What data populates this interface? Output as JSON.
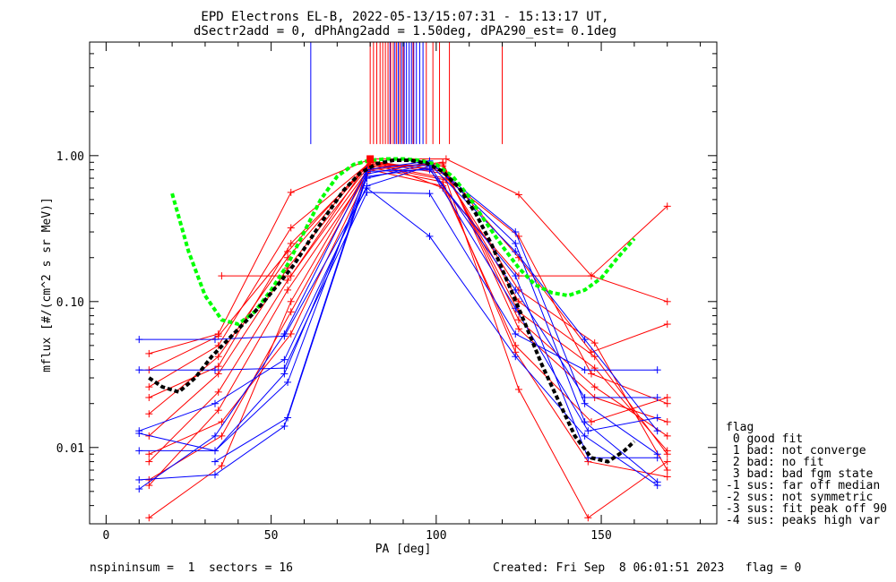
{
  "chart_data": {
    "type": "scatter",
    "title": "EPD Electrons EL-B, 2022-05-13/15:07:31 - 15:13:17 UT,",
    "subtitle": "dSectr2add = 0, dPhAng2add = 1.50deg, dPA290_est=    0.1deg",
    "xlabel": "PA [deg]",
    "ylabel": "mflux [#/(cm^2 s sr MeV)]",
    "xlim": [
      -5,
      185
    ],
    "ylim": [
      0.003,
      6
    ],
    "yscale": "log",
    "x_ticks": [
      "0",
      "50",
      "100",
      "150"
    ],
    "y_ticks": [
      "0.01",
      "0.10",
      "1.00"
    ],
    "legend_position": "right",
    "legend": {
      "title": "flag",
      "entries": [
        " 0 good fit",
        " 1 bad: not converge",
        " 2 bad: no fit",
        " 3 bad: bad fgm state",
        "-1 sus: far off median",
        "-2 sus: not symmetric",
        "-3 sus: fit peak off 90",
        "-4 sus: peaks high var"
      ]
    },
    "vertical_markers": {
      "blue": [
        62,
        86,
        87.5,
        88.5,
        89.5,
        90.3,
        91,
        91.8,
        92.5,
        93.2,
        94,
        95,
        96
      ],
      "red": [
        80,
        81,
        82,
        83,
        83.8,
        84.6,
        85.4,
        86.2,
        87,
        88,
        89,
        90,
        93,
        97,
        99,
        101,
        104,
        120
      ]
    },
    "series": [
      {
        "color": "#ff0000",
        "x": [
          13,
          34,
          55,
          80,
          102,
          125,
          148,
          170
        ],
        "y": [
          0.034,
          0.058,
          0.22,
          0.92,
          0.78,
          0.12,
          0.052,
          0.007
        ]
      },
      {
        "color": "#ff0000",
        "x": [
          13,
          34,
          55,
          80,
          102,
          125,
          148,
          170
        ],
        "y": [
          0.017,
          0.042,
          0.2,
          0.9,
          0.8,
          0.1,
          0.042,
          0.009
        ]
      },
      {
        "color": "#ff0000",
        "x": [
          13,
          34,
          55,
          80,
          102,
          125,
          148,
          170
        ],
        "y": [
          0.012,
          0.032,
          0.17,
          0.87,
          0.85,
          0.085,
          0.035,
          0.0095
        ]
      },
      {
        "color": "#ff0000",
        "x": [
          13,
          34,
          55,
          80,
          102,
          125,
          148,
          170
        ],
        "y": [
          0.008,
          0.024,
          0.14,
          0.84,
          0.88,
          0.075,
          0.026,
          0.012
        ]
      },
      {
        "color": "#ff0000",
        "x": [
          13,
          34,
          55,
          80,
          102,
          125,
          148,
          170
        ],
        "y": [
          0.0055,
          0.018,
          0.12,
          0.8,
          0.9,
          0.065,
          0.022,
          0.015
        ]
      },
      {
        "color": "#ff0000",
        "x": [
          13,
          34,
          56,
          80,
          103,
          125,
          147,
          170
        ],
        "y": [
          0.044,
          0.06,
          0.56,
          0.95,
          0.95,
          0.54,
          0.15,
          0.45
        ]
      },
      {
        "color": "#ff0000",
        "x": [
          13,
          34,
          56,
          80,
          103,
          125,
          147,
          170
        ],
        "y": [
          0.026,
          0.05,
          0.32,
          0.9,
          0.75,
          0.2,
          0.045,
          0.07
        ]
      },
      {
        "color": "#ff0000",
        "x": [
          13,
          34,
          56,
          80,
          103,
          125,
          147,
          170
        ],
        "y": [
          0.022,
          0.036,
          0.25,
          0.88,
          0.7,
          0.28,
          0.032,
          0.02
        ]
      },
      {
        "color": "#ff0000",
        "x": [
          13,
          35,
          56,
          80,
          103,
          125,
          146,
          170
        ],
        "y": [
          0.0033,
          0.0075,
          0.1,
          0.86,
          0.68,
          0.025,
          0.0033,
          0.008
        ]
      },
      {
        "color": "#ff0000",
        "x": [
          13,
          35,
          56,
          80,
          102,
          124,
          146,
          170
        ],
        "y": [
          0.006,
          0.012,
          0.085,
          0.83,
          0.66,
          0.045,
          0.008,
          0.0063
        ]
      },
      {
        "color": "#ff0000",
        "x": [
          13,
          35,
          56,
          80,
          102,
          124,
          147,
          170
        ],
        "y": [
          0.009,
          0.015,
          0.06,
          0.8,
          0.62,
          0.05,
          0.015,
          0.022
        ]
      },
      {
        "color": "#ff0000",
        "x": [
          35,
          56,
          80,
          102,
          125,
          147,
          170
        ],
        "y": [
          0.15,
          0.15,
          0.94,
          0.6,
          0.15,
          0.15,
          0.1
        ]
      },
      {
        "color": "#0000ff",
        "x": [
          10,
          33,
          54,
          79,
          98,
          124,
          145,
          167
        ],
        "y": [
          0.055,
          0.055,
          0.058,
          0.6,
          0.28,
          0.042,
          0.012,
          0.0055
        ]
      },
      {
        "color": "#0000ff",
        "x": [
          10,
          33,
          54,
          79,
          98,
          124,
          145,
          167
        ],
        "y": [
          0.034,
          0.034,
          0.035,
          0.56,
          0.55,
          0.06,
          0.034,
          0.034
        ]
      },
      {
        "color": "#0000ff",
        "x": [
          10,
          33,
          54,
          79,
          98,
          124,
          145,
          167
        ],
        "y": [
          0.013,
          0.02,
          0.04,
          0.62,
          0.85,
          0.12,
          0.022,
          0.022
        ]
      },
      {
        "color": "#0000ff",
        "x": [
          10,
          33,
          54,
          79,
          98,
          124,
          145,
          167
        ],
        "y": [
          0.0095,
          0.0095,
          0.032,
          0.7,
          0.88,
          0.22,
          0.055,
          0.013
        ]
      },
      {
        "color": "#0000ff",
        "x": [
          10,
          33,
          54,
          79,
          98,
          124,
          145,
          167
        ],
        "y": [
          0.006,
          0.0065,
          0.014,
          0.75,
          0.9,
          0.3,
          0.02,
          0.009
        ]
      },
      {
        "color": "#0000ff",
        "x": [
          10,
          33,
          54,
          79,
          98,
          124,
          145,
          167
        ],
        "y": [
          0.0052,
          0.012,
          0.06,
          0.8,
          0.92,
          0.25,
          0.015,
          0.0058
        ]
      },
      {
        "color": "#0000ff",
        "x": [
          10,
          33,
          55,
          79,
          98,
          124,
          146,
          167
        ],
        "y": [
          0.0125,
          0.0095,
          0.028,
          0.78,
          0.8,
          0.15,
          0.0085,
          0.0085
        ]
      },
      {
        "color": "#0000ff",
        "x": [
          33,
          55,
          79,
          98,
          124,
          146,
          167
        ],
        "y": [
          0.008,
          0.016,
          0.72,
          0.82,
          0.09,
          0.013,
          0.016
        ]
      }
    ],
    "fit_curves": [
      {
        "color": "#00ff00",
        "x": [
          20,
          25,
          30,
          35,
          40,
          45,
          50,
          55,
          60,
          65,
          70,
          75,
          80,
          85,
          90,
          95,
          100,
          105,
          110,
          115,
          120,
          125,
          130,
          135,
          140,
          145,
          150,
          155,
          160
        ],
        "y": [
          0.55,
          0.22,
          0.11,
          0.075,
          0.07,
          0.085,
          0.12,
          0.18,
          0.3,
          0.5,
          0.72,
          0.87,
          0.93,
          0.95,
          0.95,
          0.93,
          0.87,
          0.72,
          0.52,
          0.35,
          0.24,
          0.17,
          0.13,
          0.115,
          0.11,
          0.12,
          0.145,
          0.2,
          0.27
        ]
      },
      {
        "color": "#000000",
        "x": [
          13,
          17,
          22,
          27,
          32,
          37,
          42,
          47,
          52,
          57,
          62,
          67,
          72,
          77,
          82,
          87,
          92,
          97,
          102,
          107,
          112,
          117,
          122,
          127,
          132,
          137,
          142,
          147,
          152,
          157,
          160
        ],
        "y": [
          0.03,
          0.026,
          0.024,
          0.03,
          0.042,
          0.055,
          0.072,
          0.095,
          0.13,
          0.18,
          0.27,
          0.4,
          0.58,
          0.76,
          0.88,
          0.93,
          0.93,
          0.89,
          0.78,
          0.6,
          0.4,
          0.24,
          0.13,
          0.07,
          0.037,
          0.021,
          0.012,
          0.0085,
          0.008,
          0.0095,
          0.011
        ]
      }
    ],
    "footer_left": "nspininsum =  1  sectors = 16",
    "footer_right": "Created: Fri Sep  8 06:01:51 2023   flag = 0"
  }
}
